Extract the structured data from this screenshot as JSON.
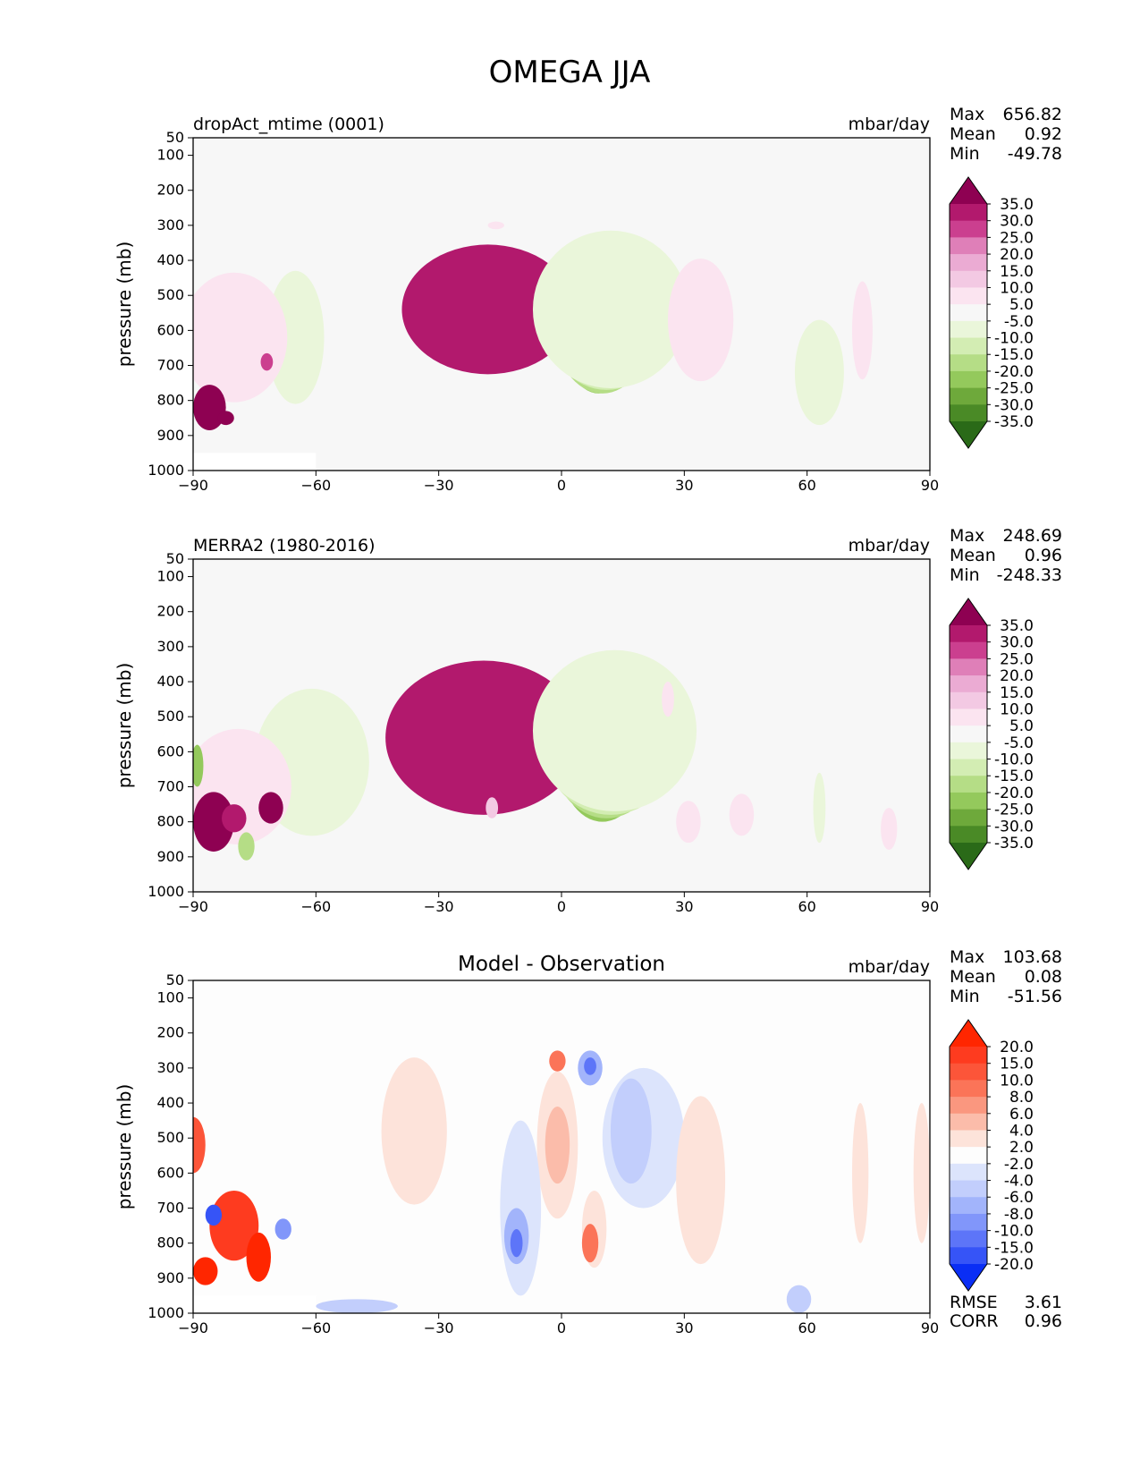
{
  "figure": {
    "title": "OMEGA JJA"
  },
  "chart_data": [
    {
      "type": "heatmap",
      "id": "model",
      "left_title": "dropAct_mtime (0001)",
      "center_title": "",
      "units": "mbar/day",
      "ylabel": "pressure (mb)",
      "xlim": [
        -90,
        90
      ],
      "ylim": [
        1000,
        50
      ],
      "xticks": [
        "−90",
        "−60",
        "−30",
        "0",
        "30",
        "60",
        "90"
      ],
      "xtick_values": [
        -90,
        -60,
        -30,
        0,
        30,
        60,
        90
      ],
      "yticks": [
        "50",
        "100",
        "200",
        "300",
        "400",
        "500",
        "600",
        "700",
        "800",
        "900",
        "1000"
      ],
      "ytick_values": [
        50,
        100,
        200,
        300,
        400,
        500,
        600,
        700,
        800,
        900,
        1000
      ],
      "stats": [
        {
          "label": "Max",
          "value": "656.82"
        },
        {
          "label": "Mean",
          "value": "0.92"
        },
        {
          "label": "Min",
          "value": "-49.78"
        }
      ],
      "colorbar": {
        "levels": [
          35,
          30,
          25,
          20,
          15,
          10,
          5,
          -5,
          -10,
          -15,
          -20,
          -25,
          -30,
          -35
        ],
        "labels": [
          "35.0",
          "30.0",
          "25.0",
          "20.0",
          "15.0",
          "10.0",
          "5.0",
          "-5.0",
          "-10.0",
          "-15.0",
          "-20.0",
          "-25.0",
          "-30.0",
          "-35.0"
        ],
        "colors": [
          "#8e0152",
          "#b2196d",
          "#cb3f8f",
          "#df7fb8",
          "#ebabd3",
          "#f3c9e3",
          "#fbe4f0",
          "#f7f7f7",
          "#eaf6da",
          "#d3edb3",
          "#b5dd86",
          "#94c95c",
          "#6ea93b",
          "#4a8a26",
          "#2a6a18"
        ]
      },
      "features": [
        {
          "lat": -21,
          "p": 580,
          "w": 10,
          "h": 200,
          "level": 4
        },
        {
          "lat": -19,
          "p": 560,
          "w": 16,
          "h": 300,
          "level": 5
        },
        {
          "lat": -18,
          "p": 540,
          "w": 21,
          "h": 370,
          "level": 6
        },
        {
          "lat": -16,
          "p": 300,
          "w": 2,
          "h": 22,
          "level": 1
        },
        {
          "lat": 8,
          "p": 550,
          "w": 3,
          "h": 260,
          "level": -7
        },
        {
          "lat": 8,
          "p": 560,
          "w": 5,
          "h": 320,
          "level": -6
        },
        {
          "lat": 8.5,
          "p": 580,
          "w": 7,
          "h": 360,
          "level": -5
        },
        {
          "lat": 9,
          "p": 590,
          "w": 9,
          "h": 380,
          "level": -4
        },
        {
          "lat": 10,
          "p": 580,
          "w": 12,
          "h": 400,
          "level": -3
        },
        {
          "lat": 11,
          "p": 560,
          "w": 15,
          "h": 420,
          "level": -2
        },
        {
          "lat": 12,
          "p": 540,
          "w": 19,
          "h": 450,
          "level": -1
        },
        {
          "lat": -66,
          "p": 640,
          "w": 2.5,
          "h": 180,
          "level": -3
        },
        {
          "lat": -66,
          "p": 620,
          "w": 4,
          "h": 260,
          "level": -2
        },
        {
          "lat": -65,
          "p": 620,
          "w": 7,
          "h": 380,
          "level": -1
        },
        {
          "lat": -80,
          "p": 620,
          "w": 13,
          "h": 370,
          "level": 1
        },
        {
          "lat": -86,
          "p": 820,
          "w": 4,
          "h": 130,
          "level": 7
        },
        {
          "lat": -82,
          "p": 850,
          "w": 2,
          "h": 40,
          "level": 7
        },
        {
          "lat": -72,
          "p": 690,
          "w": 1.5,
          "h": 50,
          "level": 5
        },
        {
          "lat": 34,
          "p": 570,
          "w": 8,
          "h": 350,
          "level": 1
        },
        {
          "lat": 73.5,
          "p": 600,
          "w": 2.5,
          "h": 280,
          "level": 1
        },
        {
          "lat": 63,
          "p": 720,
          "w": 6,
          "h": 300,
          "level": -1
        }
      ],
      "masked_region": {
        "lat": [
          -90,
          -60
        ],
        "p_from": 950
      }
    },
    {
      "type": "heatmap",
      "id": "obs",
      "left_title": "MERRA2 (1980-2016)",
      "center_title": "",
      "units": "mbar/day",
      "ylabel": "pressure (mb)",
      "xlim": [
        -90,
        90
      ],
      "ylim": [
        1000,
        50
      ],
      "xticks": [
        "−90",
        "−60",
        "−30",
        "0",
        "30",
        "60",
        "90"
      ],
      "xtick_values": [
        -90,
        -60,
        -30,
        0,
        30,
        60,
        90
      ],
      "yticks": [
        "50",
        "100",
        "200",
        "300",
        "400",
        "500",
        "600",
        "700",
        "800",
        "900",
        "1000"
      ],
      "ytick_values": [
        50,
        100,
        200,
        300,
        400,
        500,
        600,
        700,
        800,
        900,
        1000
      ],
      "stats": [
        {
          "label": "Max",
          "value": "248.69"
        },
        {
          "label": "Mean",
          "value": "0.96"
        },
        {
          "label": "Min",
          "value": "-248.33"
        }
      ],
      "colorbar": {
        "levels": [
          35,
          30,
          25,
          20,
          15,
          10,
          5,
          -5,
          -10,
          -15,
          -20,
          -25,
          -30,
          -35
        ],
        "labels": [
          "35.0",
          "30.0",
          "25.0",
          "20.0",
          "15.0",
          "10.0",
          "5.0",
          "-5.0",
          "-10.0",
          "-15.0",
          "-20.0",
          "-25.0",
          "-30.0",
          "-35.0"
        ],
        "colors": [
          "#8e0152",
          "#b2196d",
          "#cb3f8f",
          "#df7fb8",
          "#ebabd3",
          "#f3c9e3",
          "#fbe4f0",
          "#f7f7f7",
          "#eaf6da",
          "#d3edb3",
          "#b5dd86",
          "#94c95c",
          "#6ea93b",
          "#4a8a26",
          "#2a6a18"
        ]
      },
      "features": [
        {
          "lat": -21,
          "p": 600,
          "w": 13,
          "h": 320,
          "level": 4
        },
        {
          "lat": -20,
          "p": 580,
          "w": 18,
          "h": 380,
          "level": 5
        },
        {
          "lat": -19,
          "p": 560,
          "w": 24,
          "h": 440,
          "level": 6
        },
        {
          "lat": -17,
          "p": 760,
          "w": 1.5,
          "h": 60,
          "level": 2
        },
        {
          "lat": 8,
          "p": 580,
          "w": 5,
          "h": 320,
          "level": -7
        },
        {
          "lat": 8.5,
          "p": 590,
          "w": 7,
          "h": 360,
          "level": -6
        },
        {
          "lat": 9,
          "p": 600,
          "w": 9,
          "h": 380,
          "level": -5
        },
        {
          "lat": 10,
          "p": 600,
          "w": 11,
          "h": 400,
          "level": -4
        },
        {
          "lat": 11,
          "p": 580,
          "w": 14,
          "h": 420,
          "level": -3
        },
        {
          "lat": 12,
          "p": 560,
          "w": 17,
          "h": 440,
          "level": -2
        },
        {
          "lat": 13,
          "p": 540,
          "w": 20,
          "h": 460,
          "level": -1
        },
        {
          "lat": -63,
          "p": 680,
          "w": 6,
          "h": 250,
          "level": -3
        },
        {
          "lat": -62,
          "p": 650,
          "w": 10,
          "h": 360,
          "level": -2
        },
        {
          "lat": -61,
          "p": 630,
          "w": 14,
          "h": 420,
          "level": -1
        },
        {
          "lat": -79,
          "p": 700,
          "w": 13,
          "h": 330,
          "level": 1
        },
        {
          "lat": -85,
          "p": 800,
          "w": 5,
          "h": 170,
          "level": 7
        },
        {
          "lat": -80,
          "p": 790,
          "w": 3,
          "h": 80,
          "level": 6
        },
        {
          "lat": -71,
          "p": 760,
          "w": 3,
          "h": 90,
          "level": 7
        },
        {
          "lat": -77,
          "p": 870,
          "w": 2,
          "h": 80,
          "level": -3
        },
        {
          "lat": -89,
          "p": 640,
          "w": 1.5,
          "h": 120,
          "level": -4
        },
        {
          "lat": 31,
          "p": 800,
          "w": 3,
          "h": 120,
          "level": 1
        },
        {
          "lat": 26,
          "p": 450,
          "w": 1.5,
          "h": 100,
          "level": 1
        },
        {
          "lat": 44,
          "p": 780,
          "w": 3,
          "h": 120,
          "level": 1
        },
        {
          "lat": 63,
          "p": 760,
          "w": 1.5,
          "h": 200,
          "level": -1
        },
        {
          "lat": 80,
          "p": 820,
          "w": 2,
          "h": 120,
          "level": 1
        }
      ],
      "masked_region": null
    },
    {
      "type": "heatmap",
      "id": "diff",
      "left_title": "",
      "center_title": "Model - Observation",
      "units": "mbar/day",
      "ylabel": "pressure (mb)",
      "xlim": [
        -90,
        90
      ],
      "ylim": [
        1000,
        50
      ],
      "xticks": [
        "−90",
        "−60",
        "−30",
        "0",
        "30",
        "60",
        "90"
      ],
      "xtick_values": [
        -90,
        -60,
        -30,
        0,
        30,
        60,
        90
      ],
      "yticks": [
        "50",
        "100",
        "200",
        "300",
        "400",
        "500",
        "600",
        "700",
        "800",
        "900",
        "1000"
      ],
      "ytick_values": [
        50,
        100,
        200,
        300,
        400,
        500,
        600,
        700,
        800,
        900,
        1000
      ],
      "stats": [
        {
          "label": "Max",
          "value": "103.68"
        },
        {
          "label": "Mean",
          "value": "0.08"
        },
        {
          "label": "Min",
          "value": "-51.56"
        }
      ],
      "extra_stats": [
        {
          "label": "RMSE",
          "value": "3.61"
        },
        {
          "label": "CORR",
          "value": "0.96"
        }
      ],
      "colorbar": {
        "levels": [
          20,
          15,
          10,
          8,
          6,
          4,
          2,
          -2,
          -4,
          -6,
          -8,
          -10,
          -15,
          -20
        ],
        "labels": [
          "20.0",
          "15.0",
          "10.0",
          "8.0",
          "6.0",
          "4.0",
          "2.0",
          "-2.0",
          "-4.0",
          "-6.0",
          "-8.0",
          "-10.0",
          "-15.0",
          "-20.0"
        ],
        "colors": [
          "#ff2600",
          "#fe3b1f",
          "#fc5539",
          "#fb7458",
          "#fa977f",
          "#fbbcaa",
          "#fde3da",
          "#fdfdfd",
          "#dce4fc",
          "#c2cefc",
          "#a2b4fb",
          "#8196fa",
          "#5d75f8",
          "#3654f7",
          "#0a2ef5"
        ]
      },
      "features": [
        {
          "lat": -1,
          "p": 520,
          "w": 5,
          "h": 420,
          "level": 1
        },
        {
          "lat": -1,
          "p": 520,
          "w": 3,
          "h": 220,
          "level": 2
        },
        {
          "lat": -1,
          "p": 280,
          "w": 2,
          "h": 60,
          "level": 4
        },
        {
          "lat": 8,
          "p": 760,
          "w": 3,
          "h": 220,
          "level": 1
        },
        {
          "lat": 7,
          "p": 800,
          "w": 2,
          "h": 110,
          "level": 4
        },
        {
          "lat": 7,
          "p": 300,
          "w": 3,
          "h": 100,
          "level": -3
        },
        {
          "lat": 7,
          "p": 295,
          "w": 1.5,
          "h": 50,
          "level": -5
        },
        {
          "lat": 20,
          "p": 500,
          "w": 10,
          "h": 400,
          "level": -1
        },
        {
          "lat": 17,
          "p": 480,
          "w": 5,
          "h": 300,
          "level": -2
        },
        {
          "lat": -10,
          "p": 700,
          "w": 5,
          "h": 500,
          "level": -1
        },
        {
          "lat": -11,
          "p": 780,
          "w": 3,
          "h": 160,
          "level": -3
        },
        {
          "lat": -11,
          "p": 800,
          "w": 1.5,
          "h": 80,
          "level": -5
        },
        {
          "lat": 34,
          "p": 620,
          "w": 6,
          "h": 480,
          "level": 1
        },
        {
          "lat": -36,
          "p": 480,
          "w": 8,
          "h": 420,
          "level": 1
        },
        {
          "lat": -80,
          "p": 750,
          "w": 6,
          "h": 200,
          "level": 6
        },
        {
          "lat": -85,
          "p": 720,
          "w": 2,
          "h": 60,
          "level": -6
        },
        {
          "lat": -74,
          "p": 840,
          "w": 3,
          "h": 140,
          "level": 7
        },
        {
          "lat": -87,
          "p": 880,
          "w": 3,
          "h": 80,
          "level": 7
        },
        {
          "lat": -68,
          "p": 760,
          "w": 2,
          "h": 60,
          "level": -4
        },
        {
          "lat": -90,
          "p": 520,
          "w": 3,
          "h": 160,
          "level": 5
        },
        {
          "lat": -50,
          "p": 980,
          "w": 10,
          "h": 40,
          "level": -2
        },
        {
          "lat": 58,
          "p": 960,
          "w": 3,
          "h": 80,
          "level": -2
        },
        {
          "lat": 73,
          "p": 600,
          "w": 2,
          "h": 400,
          "level": 1
        },
        {
          "lat": 88,
          "p": 600,
          "w": 2,
          "h": 400,
          "level": 1
        }
      ],
      "masked_region": {
        "lat": [
          -90,
          -60
        ],
        "p_from": 950
      }
    }
  ]
}
